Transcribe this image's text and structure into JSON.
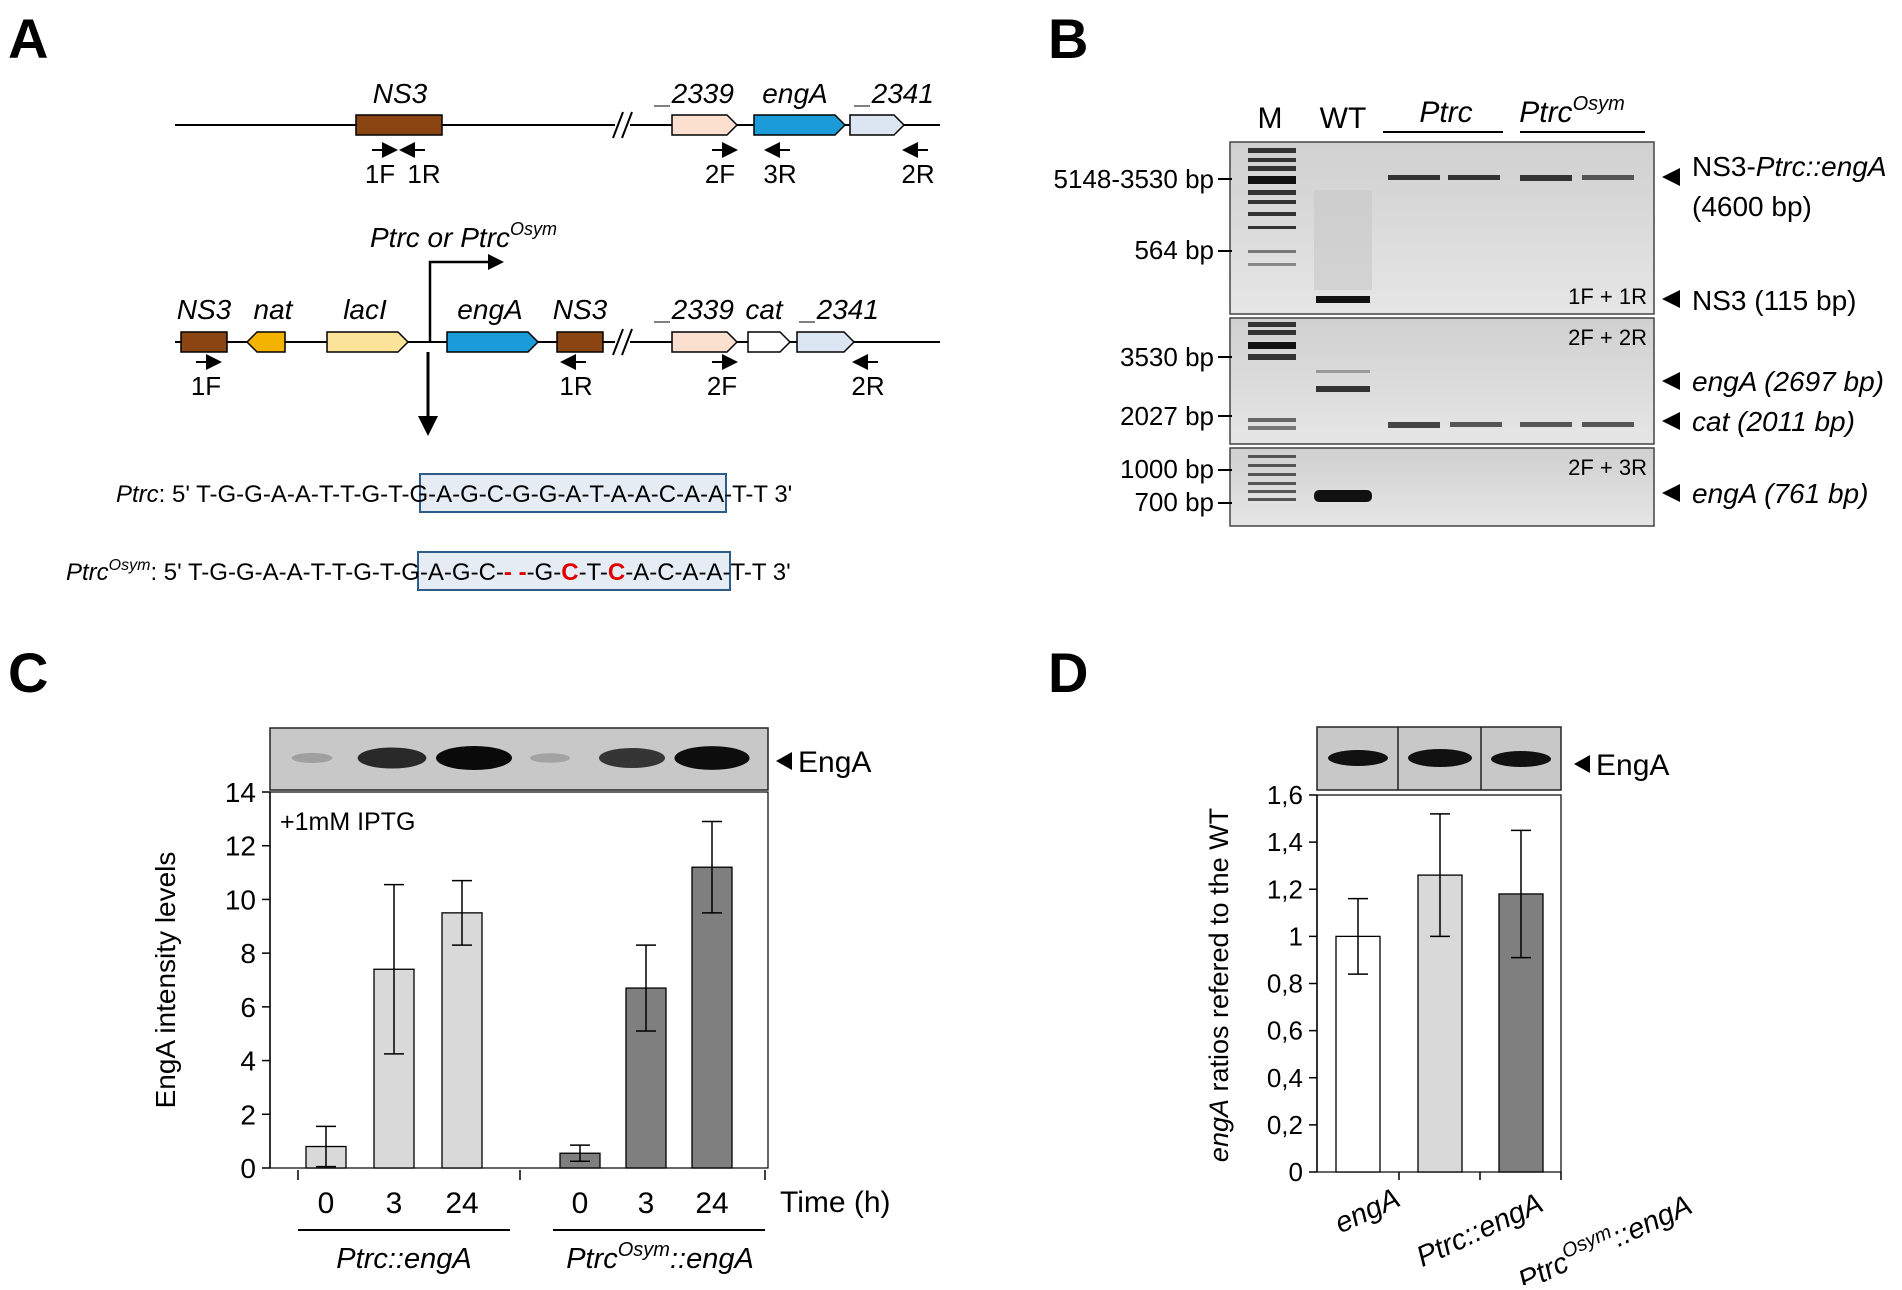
{
  "panels": {
    "a": "A",
    "b": "B",
    "c": "C",
    "d": "D"
  },
  "panel_a": {
    "track1_genes": [
      "NS3",
      "_2339",
      "engA",
      "_2341"
    ],
    "track1_primers": [
      "1F",
      "1R",
      "2F",
      "3R",
      "2R"
    ],
    "promoter_label": "Ptrc or Ptrc",
    "promoter_sup": "Osym",
    "track2_genes": [
      "NS3",
      "nat",
      "lacI",
      "engA",
      "NS3",
      "_2339",
      "cat",
      "_2341"
    ],
    "track2_primers": [
      "1F",
      "1R",
      "2F",
      "2R"
    ],
    "seq_ptrc_label": "Ptrc",
    "seq_ptrc_prefix": ": 5' T-G-G-A-A-T-T-G-",
    "seq_ptrc_box": "T-G-A-G-C-G-G-A-T-A-A",
    "seq_ptrc_suffix": "-C-A-A-T-T 3'",
    "seq_osym_label": "Ptrc",
    "seq_osym_sup": "Osym",
    "seq_osym_prefix": ": 5' T-G-G-A-A-T-T-G-",
    "seq_osym_box_1": "T-G-A-G-C-",
    "seq_osym_gap": "- -",
    "seq_osym_box_2": "-G-",
    "seq_osym_mut_1": "C",
    "seq_osym_box_3": "-T-",
    "seq_osym_mut_2": "C",
    "seq_osym_box_4": "-A",
    "seq_osym_suffix": "-C-A-A-T-T 3'",
    "colors": {
      "ns3": "#8b4513",
      "nat": "#f5b301",
      "laci": "#fbe39a",
      "enga": "#1b9cd8",
      "g2339": "#fbe0d0",
      "g2341": "#dce6f2",
      "cat": "#ffffff"
    }
  },
  "panel_b": {
    "lane_labels": [
      "M",
      "WT",
      "Ptrc",
      "Ptrc"
    ],
    "lane_sup": "Osym",
    "gel1_markers": [
      "5148-3530 bp",
      "564 bp"
    ],
    "gel1_primers": "1F + 1R",
    "gel1_bands": [
      "NS3-",
      "Ptrc::engA",
      "(4600 bp)",
      "NS3 (115 bp)"
    ],
    "gel2_markers": [
      "3530 bp",
      "2027 bp"
    ],
    "gel2_primers": "2F + 2R",
    "gel2_bands": [
      "engA (2697 bp)",
      "cat (2011 bp)"
    ],
    "gel3_markers": [
      "1000 bp",
      "700 bp"
    ],
    "gel3_primers": "2F + 3R",
    "gel3_bands": [
      "engA (761 bp)"
    ]
  },
  "panel_c": {
    "blot_label": "EngA",
    "annotation": "+1mM IPTG",
    "x_unit": "Time (h)",
    "group_labels": [
      "Ptrc::engA",
      "Ptrc"
    ],
    "group2_sup": "Osym",
    "group2_tail": "::engA",
    "blot_intensities": [
      0.12,
      0.82,
      1.0,
      0.1,
      0.75,
      0.98
    ]
  },
  "panel_d": {
    "blot_label": "EngA",
    "ylabel_italic": "engA",
    "ylabel_rest": " ratios refered to the WT",
    "category_labels": [
      "engA",
      "Ptrc::engA",
      "Ptrc"
    ],
    "cat3_sup": "Osym",
    "cat3_tail": "::engA"
  },
  "chart_data": [
    {
      "type": "bar",
      "ylabel": "EngA intensity levels",
      "xlabel": "Time (h)",
      "ylim": [
        0,
        14
      ],
      "yticks": [
        0,
        2,
        4,
        6,
        8,
        10,
        12,
        14
      ],
      "categories": [
        "0",
        "3",
        "24",
        "0",
        "3",
        "24"
      ],
      "values": [
        0.8,
        7.4,
        9.5,
        0.55,
        6.7,
        11.2
      ],
      "errors": [
        0.75,
        3.15,
        1.2,
        0.3,
        1.6,
        1.7
      ],
      "colors": [
        "#d9d9d9",
        "#d9d9d9",
        "#d9d9d9",
        "#7f7f7f",
        "#7f7f7f",
        "#7f7f7f"
      ],
      "grid": false
    },
    {
      "type": "bar",
      "ylabel": "engA ratios refered to the WT",
      "ylim": [
        0,
        1.6
      ],
      "yticks": [
        "0",
        "0,2",
        "0,4",
        "0,6",
        "0,8",
        "1",
        "1,2",
        "1,4",
        "1,6"
      ],
      "categories": [
        "engA",
        "Ptrc::engA",
        "PtrcOsym::engA"
      ],
      "values": [
        1.0,
        1.26,
        1.18
      ],
      "errors": [
        0.16,
        0.26,
        0.27
      ],
      "colors": [
        "#ffffff",
        "#d9d9d9",
        "#7f7f7f"
      ],
      "grid": false
    }
  ]
}
